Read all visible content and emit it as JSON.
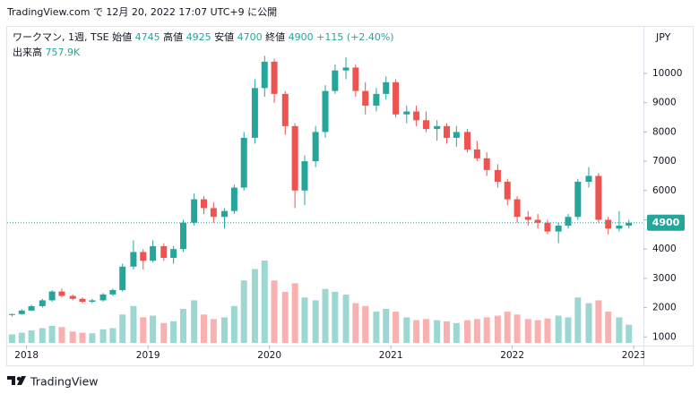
{
  "header": {
    "published": "TradingView.com で 12月 20, 2022 17:07 UTC+9 に公開"
  },
  "footer": {
    "brand": "TradingView"
  },
  "legend": {
    "symbol": "ワークマン, 1週, TSE",
    "open_label": "始値",
    "open": 4745,
    "high_label": "高値",
    "high": 4925,
    "low_label": "安値",
    "low": 4700,
    "close_label": "終値",
    "close": 4900,
    "change": "+115 (+2.40%)",
    "volume_label": "出来高",
    "volume": "757.9K"
  },
  "chart_data": {
    "type": "candlestick",
    "currency": "JPY",
    "up_color": "#26a69a",
    "down_color": "#ef5350",
    "grid": false,
    "last_price": 4900,
    "xlim": [
      2017.84,
      2023.08
    ],
    "xticks": [
      2018,
      2019,
      2020,
      2021,
      2022,
      2023
    ],
    "ylim": [
      795,
      11590
    ],
    "yticks": [
      1000,
      2000,
      3000,
      4000,
      5000,
      6000,
      7000,
      8000,
      9000,
      10000
    ],
    "x": [
      2017.88,
      2017.96,
      2018.04,
      2018.13,
      2018.21,
      2018.29,
      2018.38,
      2018.46,
      2018.54,
      2018.63,
      2018.71,
      2018.79,
      2018.88,
      2018.96,
      2019.04,
      2019.13,
      2019.21,
      2019.29,
      2019.38,
      2019.46,
      2019.54,
      2019.63,
      2019.71,
      2019.79,
      2019.88,
      2019.96,
      2020.04,
      2020.13,
      2020.21,
      2020.29,
      2020.38,
      2020.46,
      2020.54,
      2020.63,
      2020.71,
      2020.79,
      2020.88,
      2020.96,
      2021.04,
      2021.13,
      2021.21,
      2021.29,
      2021.38,
      2021.46,
      2021.54,
      2021.63,
      2021.71,
      2021.79,
      2021.88,
      2021.96,
      2022.04,
      2022.13,
      2022.21,
      2022.29,
      2022.38,
      2022.46,
      2022.54,
      2022.63,
      2022.71,
      2022.79,
      2022.88,
      2022.96
    ],
    "open": [
      1750,
      1780,
      1900,
      2050,
      2250,
      2550,
      2400,
      2300,
      2200,
      2250,
      2450,
      2600,
      3400,
      3900,
      3600,
      4100,
      3700,
      4000,
      4900,
      5700,
      5400,
      5100,
      5300,
      6100,
      7800,
      9500,
      10400,
      9300,
      8200,
      6000,
      7000,
      8000,
      9400,
      10100,
      10200,
      9400,
      8900,
      9300,
      9700,
      8600,
      8700,
      8400,
      8100,
      8200,
      7800,
      8000,
      7400,
      7100,
      6700,
      6300,
      5700,
      5100,
      5000,
      4900,
      4600,
      4800,
      5100,
      6300,
      6500,
      5000,
      4700,
      4800
    ],
    "high": [
      1800,
      1950,
      2100,
      2300,
      2600,
      2650,
      2450,
      2350,
      2300,
      2500,
      2650,
      3500,
      4300,
      4000,
      4300,
      4200,
      4100,
      5000,
      5900,
      5800,
      5600,
      5400,
      6200,
      8000,
      9800,
      10600,
      10500,
      9400,
      8300,
      7200,
      8200,
      9600,
      10300,
      10550,
      10300,
      9700,
      9500,
      9900,
      9800,
      8900,
      8900,
      8700,
      8400,
      8300,
      8200,
      8100,
      7700,
      7300,
      6900,
      6400,
      5800,
      5300,
      5200,
      5000,
      4900,
      5200,
      6400,
      6800,
      6600,
      5100,
      5300,
      5000
    ],
    "low": [
      1700,
      1760,
      1880,
      2000,
      2200,
      2350,
      2250,
      2150,
      2150,
      2200,
      2400,
      2550,
      3300,
      3300,
      3550,
      3600,
      3500,
      3900,
      4800,
      5200,
      4900,
      4700,
      5200,
      6000,
      7600,
      9200,
      9000,
      7900,
      5400,
      5500,
      6800,
      7800,
      9300,
      9800,
      9200,
      8600,
      8700,
      9100,
      8500,
      8300,
      8200,
      8000,
      7700,
      7600,
      7500,
      7300,
      7000,
      6500,
      6100,
      5500,
      4900,
      4800,
      4700,
      4500,
      4200,
      4700,
      5000,
      6100,
      4900,
      4500,
      4600,
      4700
    ],
    "close": [
      1780,
      1900,
      2050,
      2250,
      2550,
      2400,
      2300,
      2200,
      2250,
      2450,
      2600,
      3400,
      3900,
      3600,
      4100,
      3700,
      4000,
      4900,
      5700,
      5400,
      5100,
      5300,
      6100,
      7800,
      9500,
      10400,
      9300,
      8200,
      6000,
      7000,
      8000,
      9400,
      10100,
      10200,
      9400,
      8900,
      9300,
      9700,
      8600,
      8700,
      8400,
      8100,
      8200,
      7800,
      8000,
      7400,
      7100,
      6700,
      6300,
      5700,
      5100,
      5000,
      4900,
      4600,
      4800,
      5100,
      6300,
      6500,
      5000,
      4700,
      4800,
      4900
    ],
    "volume": [
      1500000,
      1800000,
      2200000,
      2600000,
      3000000,
      2800000,
      2000000,
      1800000,
      1700000,
      2400000,
      2600000,
      5000000,
      6500000,
      4500000,
      4800000,
      3500000,
      3800000,
      6000000,
      7500000,
      5000000,
      4200000,
      4500000,
      6500000,
      11000000,
      13000000,
      14500000,
      11000000,
      9000000,
      10500000,
      8000000,
      7500000,
      9500000,
      9000000,
      8500000,
      7000000,
      6500000,
      5500000,
      6000000,
      5500000,
      4500000,
      4000000,
      4200000,
      4000000,
      3800000,
      3500000,
      4000000,
      4200000,
      4500000,
      4800000,
      5500000,
      5000000,
      4200000,
      4000000,
      4300000,
      4800000,
      4500000,
      8000000,
      7000000,
      7500000,
      5500000,
      4500000,
      3200000
    ]
  }
}
